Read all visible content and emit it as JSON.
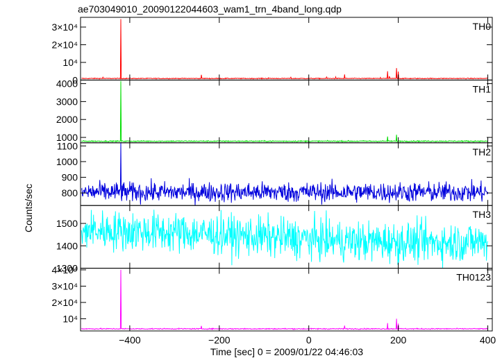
{
  "chart_data": {
    "type": "line",
    "title": "ae703049010_20090122044603_wam1_trn_4band_long.qdp",
    "xlabel": "Time [sec] 0 = 2009/01/22 04:46:03",
    "ylabel": "Counts/sec",
    "xlim": [
      -510,
      410
    ],
    "x_ticks": [
      -400,
      -200,
      0,
      200,
      400
    ],
    "x_tick_labels": [
      "−400",
      "−200",
      "0",
      "200",
      "400"
    ],
    "grid": false,
    "series": [
      {
        "name": "TH0",
        "color": "#ff0000",
        "ylim": [
          0,
          35500
        ],
        "y_ticks": [
          0,
          10000,
          20000,
          30000
        ],
        "y_tick_labels": [
          "0",
          "10⁴",
          "2×10⁴",
          "3×10⁴"
        ],
        "baseline": 900,
        "noise": 120,
        "spikes": [
          [
            -420,
            34500
          ],
          [
            -460,
            1600
          ],
          [
            -240,
            3000
          ],
          [
            -90,
            1300
          ],
          [
            -40,
            1600
          ],
          [
            40,
            1700
          ],
          [
            60,
            1800
          ],
          [
            80,
            3200
          ],
          [
            160,
            1500
          ],
          [
            176,
            5000
          ],
          [
            180,
            2200
          ],
          [
            196,
            6800
          ],
          [
            200,
            4800
          ],
          [
            400,
            1500
          ]
        ]
      },
      {
        "name": "TH1",
        "color": "#00dd00",
        "ylim": [
          700,
          4200
        ],
        "y_ticks": [
          1000,
          2000,
          3000,
          4000
        ],
        "y_tick_labels": [
          "1000",
          "2000",
          "3000",
          "4000"
        ],
        "baseline": 790,
        "noise": 15,
        "spikes": [
          [
            -420,
            4150
          ],
          [
            176,
            1050
          ],
          [
            196,
            1150
          ]
        ]
      },
      {
        "name": "TH2",
        "color": "#0000dd",
        "ylim": [
          720,
          1120
        ],
        "y_ticks": [
          800,
          900,
          1000,
          1100
        ],
        "y_tick_labels": [
          "800",
          "900",
          "1000",
          "1100"
        ],
        "baseline": 805,
        "noise": 32,
        "spikes": [
          [
            -420,
            1120
          ]
        ]
      },
      {
        "name": "TH3",
        "color": "#00ffff",
        "ylim": [
          1300,
          1580
        ],
        "y_ticks": [
          1300,
          1400,
          1500
        ],
        "y_tick_labels": [
          "1300",
          "1400",
          "1500"
        ],
        "baseline": 1440,
        "noise": 45,
        "trend": [
          [
            -500,
            1470
          ],
          [
            -300,
            1460
          ],
          [
            -100,
            1440
          ],
          [
            100,
            1420
          ],
          [
            300,
            1415
          ],
          [
            400,
            1420
          ]
        ],
        "spikes": []
      },
      {
        "name": "TH0123",
        "color": "#ff00ff",
        "ylim": [
          2500,
          41000
        ],
        "y_ticks": [
          10000,
          20000,
          30000,
          40000
        ],
        "y_tick_labels": [
          "10⁴",
          "2×10⁴",
          "3×10⁴",
          "4×10⁴"
        ],
        "baseline": 3800,
        "noise": 160,
        "spikes": [
          [
            -420,
            40000
          ],
          [
            -240,
            5600
          ],
          [
            80,
            5800
          ],
          [
            176,
            7300
          ],
          [
            196,
            10000
          ],
          [
            200,
            7000
          ]
        ]
      }
    ]
  }
}
